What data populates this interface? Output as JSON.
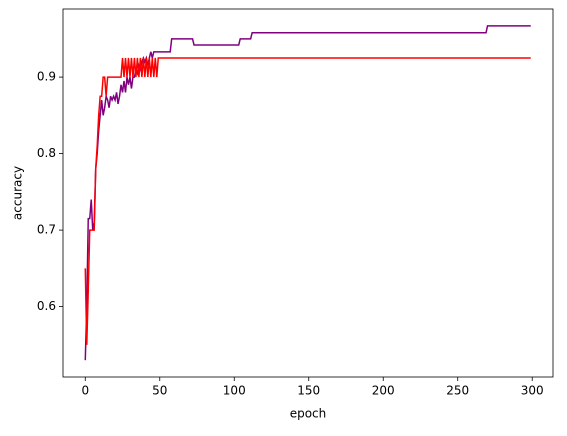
{
  "chart_data": {
    "type": "line",
    "x_label": "epoch",
    "y_label": "accuracy",
    "x": [
      0,
      1,
      2,
      3,
      4,
      5,
      6,
      7,
      8,
      9,
      10,
      11,
      12,
      13,
      14,
      15,
      16,
      17,
      18,
      19,
      20,
      21,
      22,
      23,
      24,
      25,
      26,
      27,
      28,
      29,
      30,
      31,
      32,
      33,
      34,
      35,
      36,
      37,
      38,
      39,
      40,
      41,
      42,
      43,
      44,
      45,
      46,
      47,
      48,
      49,
      50,
      57,
      58,
      72,
      73,
      103,
      104,
      111,
      112,
      269,
      270,
      299
    ],
    "series": [
      {
        "color": "purple",
        "values": [
          0.53,
          0.6,
          0.715,
          0.715,
          0.74,
          0.7,
          0.71,
          0.78,
          0.8,
          0.83,
          0.85,
          0.87,
          0.85,
          0.86,
          0.875,
          0.87,
          0.86,
          0.875,
          0.87,
          0.875,
          0.87,
          0.88,
          0.865,
          0.875,
          0.89,
          0.88,
          0.895,
          0.88,
          0.9,
          0.89,
          0.9,
          0.885,
          0.9,
          0.9,
          0.91,
          0.905,
          0.915,
          0.91,
          0.92,
          0.925,
          0.92,
          0.925,
          0.915,
          0.925,
          0.933,
          0.925,
          0.933,
          0.933,
          0.933,
          0.933,
          0.933,
          0.933,
          0.95,
          0.95,
          0.942,
          0.942,
          0.95,
          0.95,
          0.958,
          0.958,
          0.967,
          0.967
        ]
      },
      {
        "color": "red",
        "values": [
          0.65,
          0.55,
          0.62,
          0.7,
          0.7,
          0.7,
          0.7,
          0.78,
          0.81,
          0.85,
          0.875,
          0.875,
          0.9,
          0.9,
          0.875,
          0.9,
          0.9,
          0.9,
          0.9,
          0.9,
          0.9,
          0.9,
          0.9,
          0.9,
          0.9,
          0.925,
          0.9,
          0.925,
          0.9,
          0.925,
          0.9,
          0.925,
          0.9,
          0.925,
          0.9,
          0.925,
          0.9,
          0.925,
          0.9,
          0.925,
          0.9,
          0.925,
          0.9,
          0.925,
          0.9,
          0.925,
          0.9,
          0.925,
          0.9,
          0.925,
          0.925,
          0.925,
          0.925,
          0.925,
          0.925,
          0.925,
          0.925,
          0.925,
          0.925,
          0.925,
          0.925,
          0.925
        ]
      }
    ],
    "xlim": [
      -14.95,
      313.95
    ],
    "ylim": [
      0.508,
      0.989
    ],
    "xticks": [
      0,
      50,
      100,
      150,
      200,
      250,
      300
    ],
    "yticks": [
      0.6,
      0.7,
      0.8,
      0.9
    ],
    "grid": false
  }
}
